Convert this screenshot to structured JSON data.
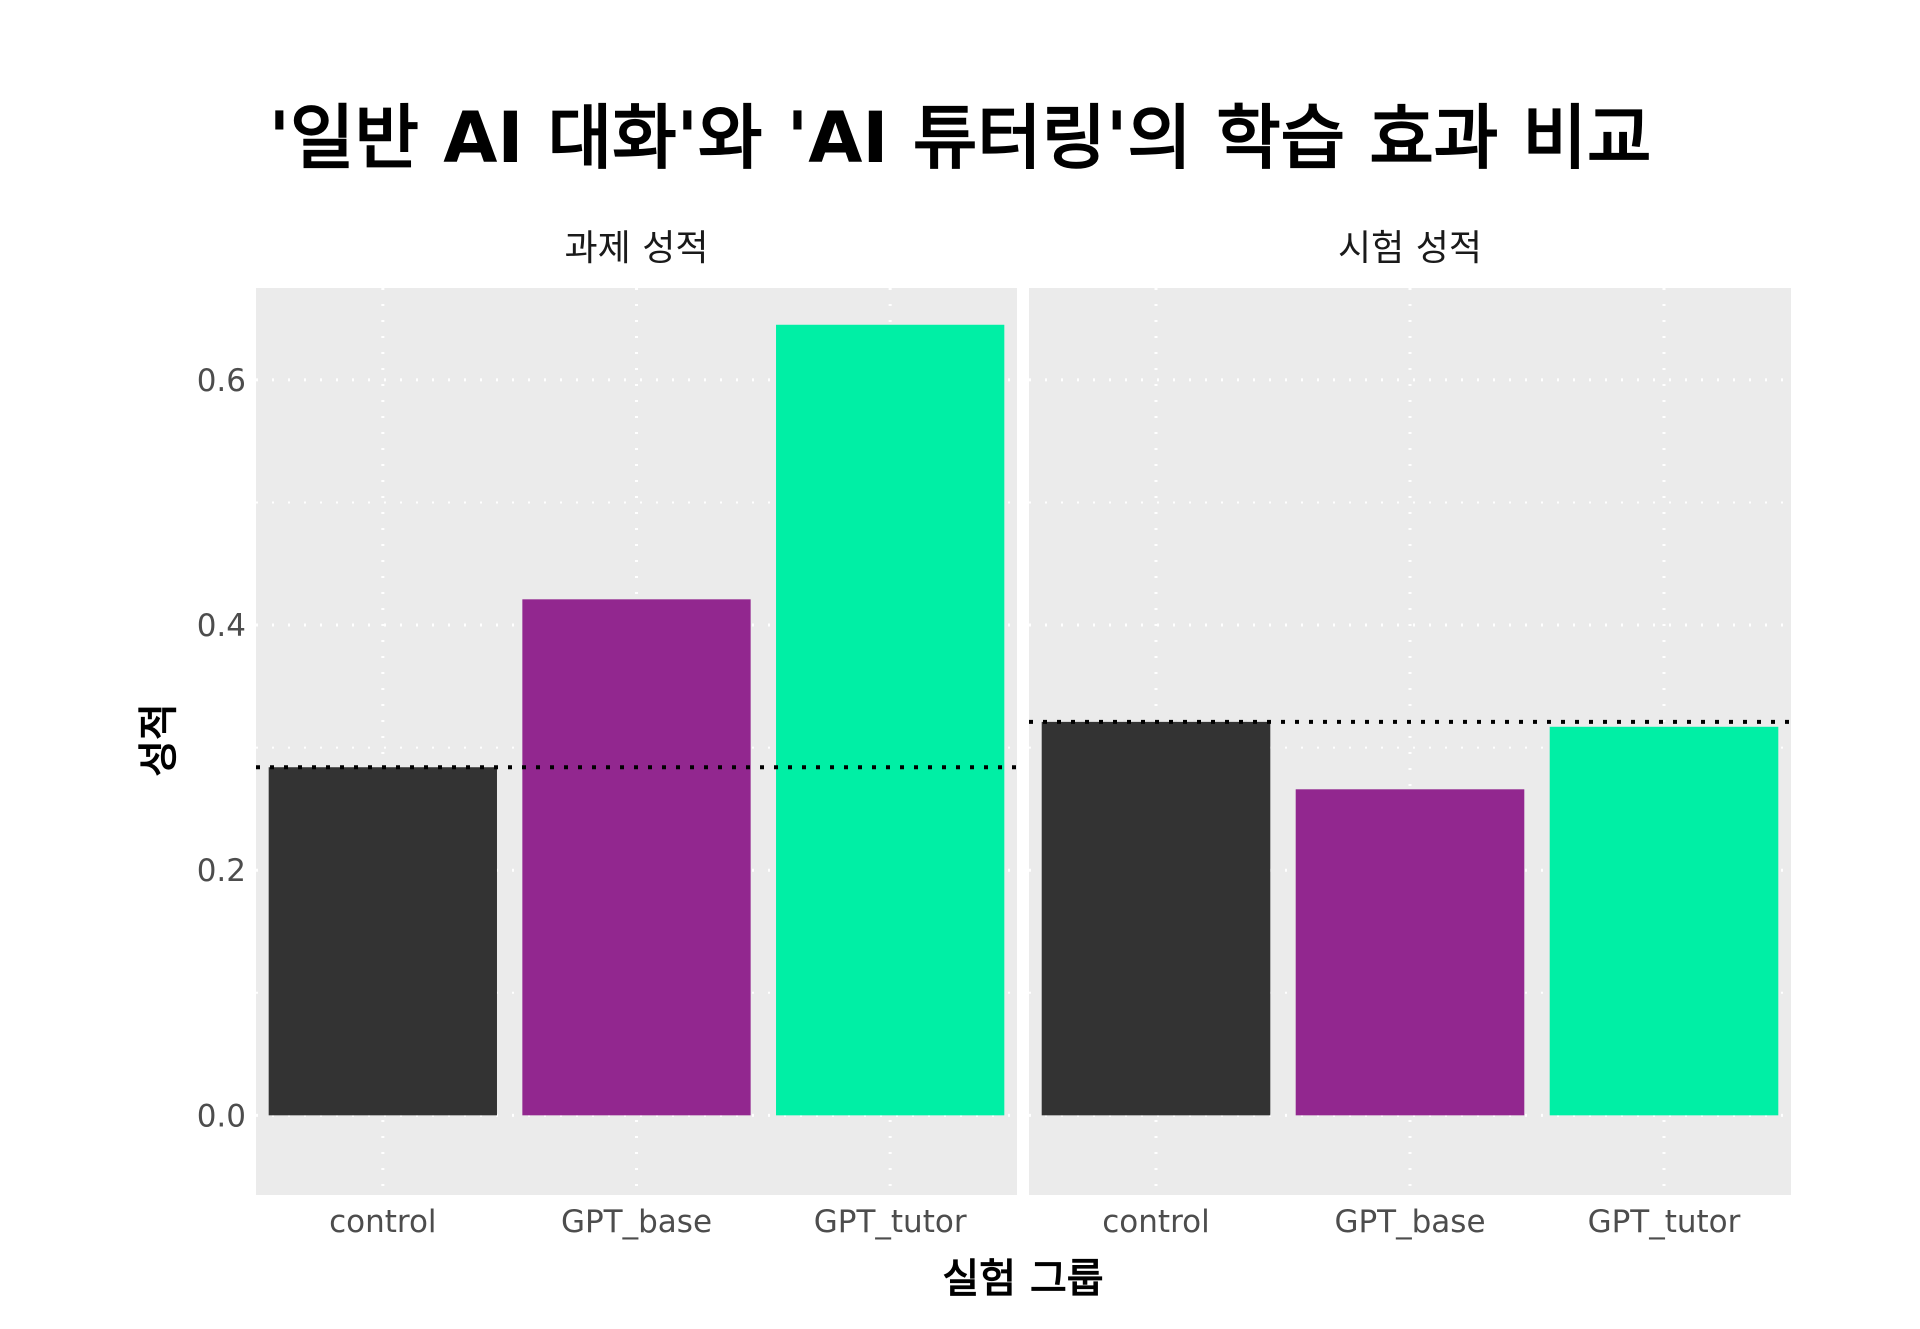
{
  "chart_data": {
    "type": "bar",
    "title": "'일반 AI 대화'와 'AI 튜터링'의 학습 효과 비교",
    "xlabel": "실험 그룹",
    "ylabel": "성적",
    "ylim": [
      -0.065,
      0.675
    ],
    "yticks": [
      0.0,
      0.2,
      0.4,
      0.6
    ],
    "ytick_labels": [
      "0.0",
      "0.2",
      "0.4",
      "0.6"
    ],
    "grid": true,
    "categories": [
      "control",
      "GPT_base",
      "GPT_tutor"
    ],
    "colors": [
      "#333333",
      "#92278F",
      "#00EFA5"
    ],
    "panels": [
      {
        "name": "과제 성적",
        "values": [
          0.284,
          0.421,
          0.645
        ],
        "reference_line": 0.284
      },
      {
        "name": "시험 성적",
        "values": [
          0.321,
          0.266,
          0.317
        ],
        "reference_line": 0.321
      }
    ]
  }
}
